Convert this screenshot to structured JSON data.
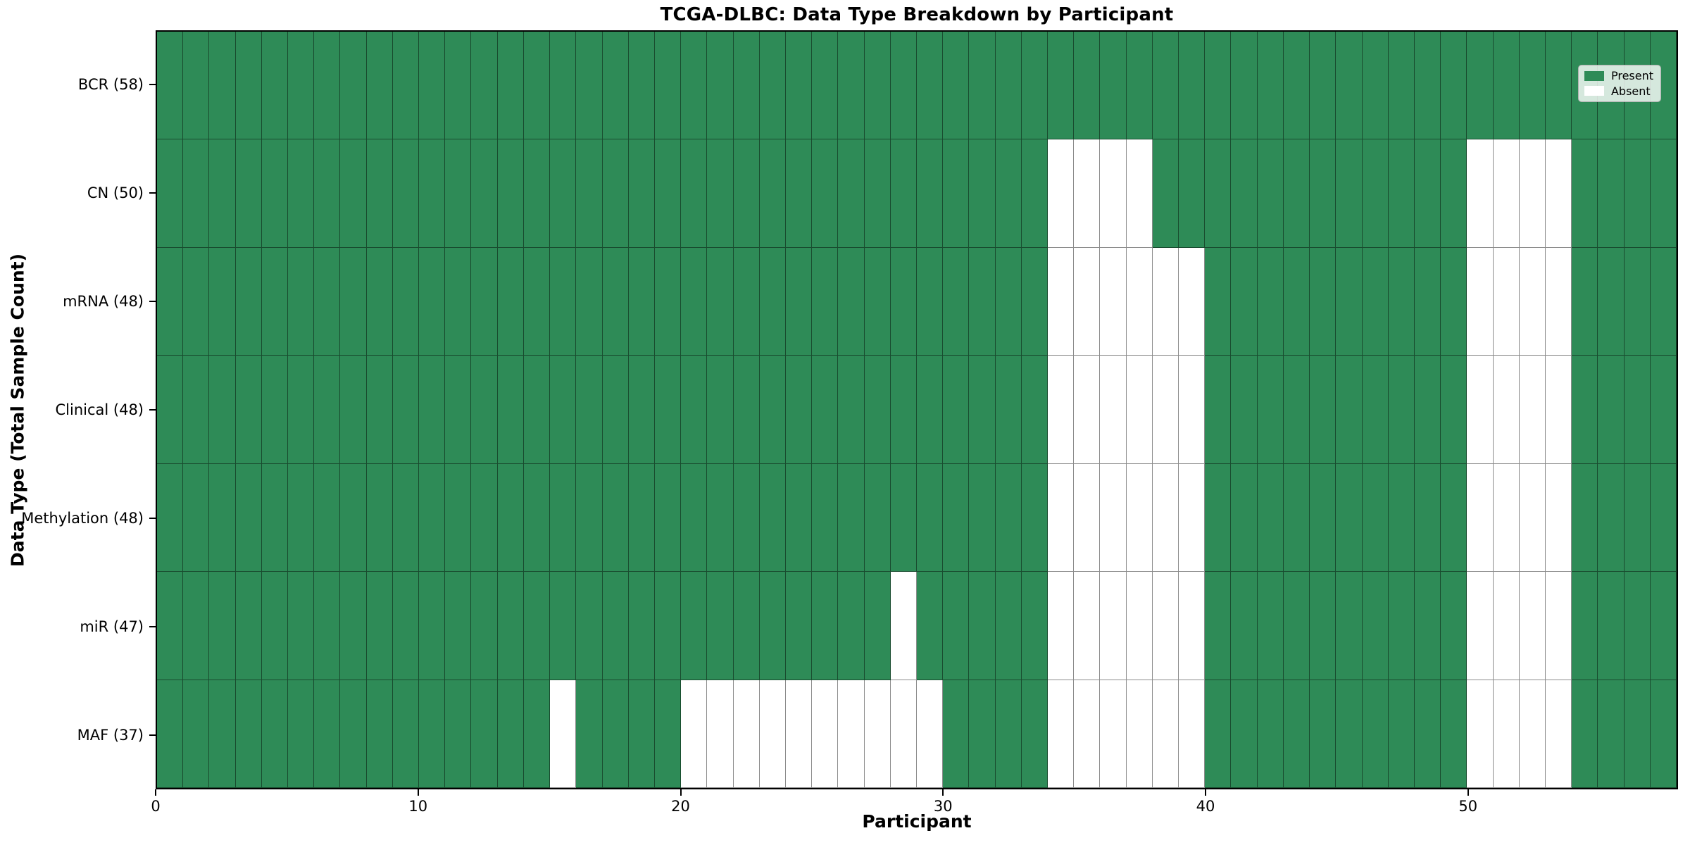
{
  "figure": {
    "background": "#ffffff"
  },
  "chart_data": {
    "type": "heatmap",
    "title": "TCGA-DLBC: Data Type Breakdown by Participant",
    "xlabel": "Participant",
    "ylabel": "Data Type (Total Sample Count)",
    "x_ticks": [
      0,
      10,
      20,
      30,
      40,
      50
    ],
    "x_range": [
      0,
      58
    ],
    "n_participants": 58,
    "grid": true,
    "colors": {
      "present": "#2e8b57",
      "absent": "#ffffff",
      "cell_line": "rgba(0,0,0,0.45)",
      "spine": "#000000"
    },
    "legend": {
      "position": "upper right",
      "entries": [
        {
          "label": "Present",
          "color": "#2e8b57"
        },
        {
          "label": "Absent",
          "color": "#ffffff"
        }
      ]
    },
    "rows": [
      {
        "label": "BCR (58)",
        "data_type": "BCR",
        "present_count": 58,
        "absent_participants": []
      },
      {
        "label": "CN (50)",
        "data_type": "CN",
        "present_count": 50,
        "absent_participants": [
          34,
          35,
          36,
          37,
          50,
          51,
          52,
          53
        ]
      },
      {
        "label": "mRNA (48)",
        "data_type": "mRNA",
        "present_count": 48,
        "absent_participants": [
          34,
          35,
          36,
          37,
          38,
          39,
          50,
          51,
          52,
          53
        ]
      },
      {
        "label": "Clinical (48)",
        "data_type": "Clinical",
        "present_count": 48,
        "absent_participants": [
          34,
          35,
          36,
          37,
          38,
          39,
          50,
          51,
          52,
          53
        ]
      },
      {
        "label": "Methylation (48)",
        "data_type": "Methylation",
        "present_count": 48,
        "absent_participants": [
          34,
          35,
          36,
          37,
          38,
          39,
          50,
          51,
          52,
          53
        ]
      },
      {
        "label": "miR (47)",
        "data_type": "miR",
        "present_count": 47,
        "absent_participants": [
          28,
          34,
          35,
          36,
          37,
          38,
          39,
          50,
          51,
          52,
          53
        ]
      },
      {
        "label": "MAF (37)",
        "data_type": "MAF",
        "present_count": 37,
        "absent_participants": [
          15,
          20,
          21,
          22,
          23,
          24,
          25,
          26,
          27,
          28,
          29,
          34,
          35,
          36,
          37,
          38,
          39,
          50,
          51,
          52,
          53
        ]
      }
    ]
  }
}
